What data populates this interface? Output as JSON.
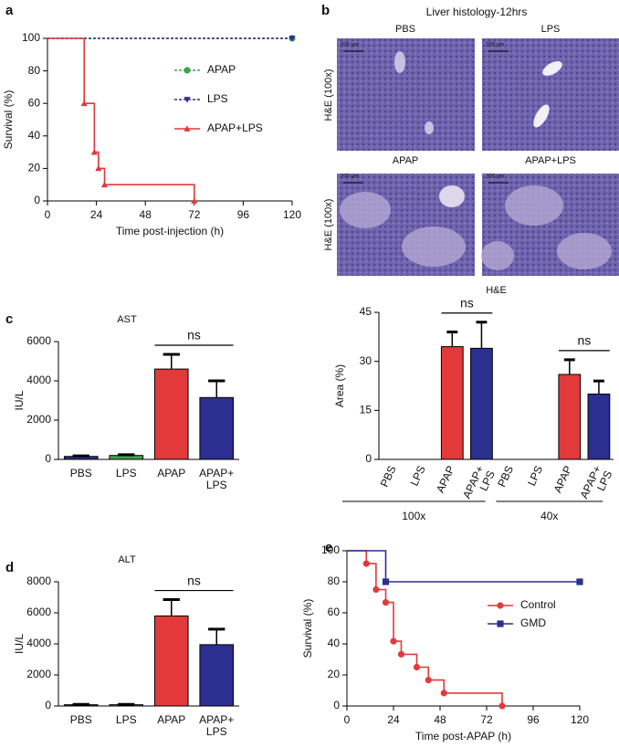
{
  "panel_labels": [
    "a",
    "b",
    "c",
    "d",
    "e"
  ],
  "histology": {
    "title": "Liver histology-12hrs",
    "panels": [
      "PBS",
      "LPS",
      "APAP",
      "APAP+LPS"
    ],
    "row_labels": [
      "H&E (100x)",
      "H&E (100x)"
    ],
    "scale_bar": "200 μm"
  },
  "chart_data": [
    {
      "type": "line",
      "step": true,
      "xlabel": "Time post-injection (h)",
      "ylabel": "Survival (%)",
      "xlim": [
        0,
        120
      ],
      "xticks": [
        0,
        24,
        48,
        72,
        96,
        120
      ],
      "ylim": [
        0,
        100
      ],
      "yticks": [
        0,
        20,
        40,
        60,
        80,
        100
      ],
      "series": [
        {
          "name": "APAP",
          "color": "#3ea34a",
          "linestyle": "dashed",
          "marker": "circle",
          "x": [
            0,
            120
          ],
          "values": [
            100,
            100
          ]
        },
        {
          "name": "LPS",
          "color": "#2b2f8f",
          "linestyle": "dashed",
          "marker": "triangle-down",
          "x": [
            0,
            120
          ],
          "values": [
            100,
            100
          ]
        },
        {
          "name": "APAP+LPS",
          "color": "#e2393b",
          "linestyle": "solid",
          "marker": "triangle",
          "x": [
            0,
            18,
            23,
            25,
            28,
            72
          ],
          "values": [
            100,
            60,
            30,
            20,
            10,
            0
          ]
        }
      ]
    },
    {
      "type": "bar",
      "title": "AST",
      "ylabel": "IU/L",
      "categories": [
        "PBS",
        "LPS",
        "APAP",
        "APAP+\nLPS"
      ],
      "values": [
        150,
        200,
        4600,
        3150
      ],
      "errors": [
        30,
        40,
        750,
        850
      ],
      "colors": [
        "#2b2f8f",
        "#3ea34a",
        "#e2393b",
        "#2b2f8f"
      ],
      "ylim": [
        0,
        6000
      ],
      "yticks": [
        0,
        2000,
        4000,
        6000
      ],
      "annotations": [
        "ns"
      ]
    },
    {
      "type": "bar",
      "title": "H&E",
      "ylabel": "Area (%)",
      "categories": [
        "PBS",
        "LPS",
        "APAP",
        "APAP+\nLPS",
        "PBS",
        "LPS",
        "APAP",
        "APAP+\nLPS"
      ],
      "values": [
        0,
        0,
        34.5,
        34,
        0,
        0,
        26,
        20
      ],
      "errors": [
        0,
        0,
        4.5,
        8,
        0,
        0,
        4.5,
        4
      ],
      "colors": [
        "#2b2f8f",
        "#3ea34a",
        "#e2393b",
        "#2b2f8f",
        "#2b2f8f",
        "#3ea34a",
        "#e2393b",
        "#2b2f8f"
      ],
      "groups": [
        "100x",
        "40x"
      ],
      "x_label_rotation": -65,
      "ylim": [
        0,
        45
      ],
      "yticks": [
        0,
        15,
        30,
        45
      ],
      "annotations": [
        "ns",
        "ns"
      ]
    },
    {
      "type": "bar",
      "title": "ALT",
      "ylabel": "IU/L",
      "categories": [
        "PBS",
        "LPS",
        "APAP",
        "APAP+\nLPS"
      ],
      "values": [
        80,
        80,
        5800,
        3950
      ],
      "errors": [
        20,
        20,
        1050,
        1000
      ],
      "colors": [
        "#2b2f8f",
        "#3ea34a",
        "#e2393b",
        "#2b2f8f"
      ],
      "ylim": [
        0,
        8000
      ],
      "yticks": [
        0,
        2000,
        4000,
        6000,
        8000
      ],
      "annotations": [
        "ns"
      ]
    },
    {
      "type": "line",
      "step": true,
      "xlabel": "Time post-APAP (h)",
      "ylabel": "Survival (%)",
      "xlim": [
        0,
        120
      ],
      "xticks": [
        0,
        24,
        48,
        72,
        96,
        120
      ],
      "ylim": [
        0,
        100
      ],
      "yticks": [
        0,
        20,
        40,
        60,
        80,
        100
      ],
      "series": [
        {
          "name": "Control",
          "color": "#e2393b",
          "linestyle": "solid",
          "marker": "circle",
          "x": [
            0,
            10,
            15,
            20,
            24,
            28,
            36,
            42,
            50,
            80
          ],
          "values": [
            100,
            91.7,
            75,
            66.7,
            41.7,
            33.3,
            25,
            16.7,
            8.3,
            0
          ]
        },
        {
          "name": "GMD",
          "color": "#2b2f8f",
          "linestyle": "solid",
          "marker": "square",
          "x": [
            0,
            20,
            120
          ],
          "values": [
            100,
            80,
            80
          ]
        }
      ]
    }
  ]
}
